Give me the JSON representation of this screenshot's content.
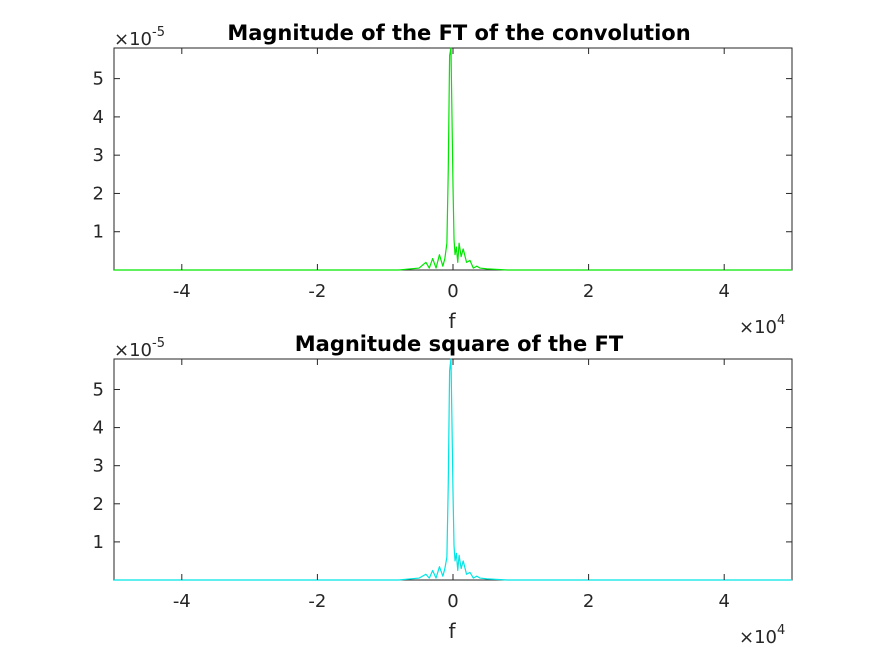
{
  "chart_data": [
    {
      "type": "line",
      "title": "Magnitude of the FT of the convolution",
      "xlabel": "f",
      "ylabel": "",
      "xlim": [
        -50000,
        50000
      ],
      "ylim": [
        0,
        5.8e-05
      ],
      "x_exponent_label": "×10",
      "x_exponent": "4",
      "y_exponent_label": "×10",
      "y_exponent": "-5",
      "x_ticks": [
        -40000,
        -20000,
        0,
        20000,
        40000
      ],
      "x_tick_labels": [
        "-4",
        "-2",
        "0",
        "2",
        "4"
      ],
      "y_ticks": [
        1e-05,
        2e-05,
        3e-05,
        4e-05,
        5e-05
      ],
      "y_tick_labels": [
        "1",
        "2",
        "3",
        "4",
        "5"
      ],
      "grid": false,
      "series": [
        {
          "color": "#00e600",
          "x": [
            -50000,
            -8000,
            -5000,
            -4000,
            -3500,
            -3000,
            -2500,
            -2000,
            -1500,
            -1200,
            -900,
            -700,
            -500,
            -300,
            -150,
            0,
            150,
            300,
            500,
            700,
            900,
            1200,
            1500,
            2000,
            2500,
            3000,
            3500,
            4000,
            5000,
            8000,
            50000
          ],
          "y": [
            0,
            0,
            5e-07,
            2e-06,
            5e-07,
            3e-06,
            5e-07,
            4e-06,
            1e-06,
            3e-06,
            7e-06,
            2.6e-05,
            5.6e-05,
            5.8e-05,
            4e-05,
            2.2e-05,
            8e-06,
            4e-06,
            6e-06,
            2e-06,
            7e-06,
            3.5e-06,
            5.5e-06,
            2e-06,
            2.5e-06,
            5e-07,
            1e-06,
            5e-07,
            3e-07,
            0,
            0
          ]
        }
      ]
    },
    {
      "type": "line",
      "title": "Magnitude square of the FT",
      "xlabel": "f",
      "ylabel": "",
      "xlim": [
        -50000,
        50000
      ],
      "ylim": [
        0,
        5.8e-05
      ],
      "x_exponent_label": "×10",
      "x_exponent": "4",
      "y_exponent_label": "×10",
      "y_exponent": "-5",
      "x_ticks": [
        -40000,
        -20000,
        0,
        20000,
        40000
      ],
      "x_tick_labels": [
        "-4",
        "-2",
        "0",
        "2",
        "4"
      ],
      "y_ticks": [
        1e-05,
        2e-05,
        3e-05,
        4e-05,
        5e-05
      ],
      "y_tick_labels": [
        "1",
        "2",
        "3",
        "4",
        "5"
      ],
      "grid": false,
      "series": [
        {
          "color": "#00e5e5",
          "x": [
            -50000,
            -8000,
            -5000,
            -4000,
            -3500,
            -3000,
            -2500,
            -2000,
            -1500,
            -1200,
            -900,
            -700,
            -500,
            -300,
            -150,
            0,
            150,
            300,
            500,
            700,
            900,
            1200,
            1500,
            2000,
            2500,
            3000,
            3500,
            4000,
            5000,
            8000,
            50000
          ],
          "y": [
            0,
            0,
            5e-07,
            1.5e-06,
            5e-07,
            2.5e-06,
            5e-07,
            3.5e-06,
            1e-06,
            3e-06,
            6e-06,
            2.5e-05,
            5.5e-05,
            5.8e-05,
            4.1e-05,
            2.3e-05,
            9e-06,
            5e-06,
            7e-06,
            2.5e-06,
            6.5e-06,
            3e-06,
            5e-06,
            1.5e-06,
            2e-06,
            5e-07,
            1e-06,
            5e-07,
            3e-07,
            0,
            0
          ]
        }
      ]
    }
  ]
}
